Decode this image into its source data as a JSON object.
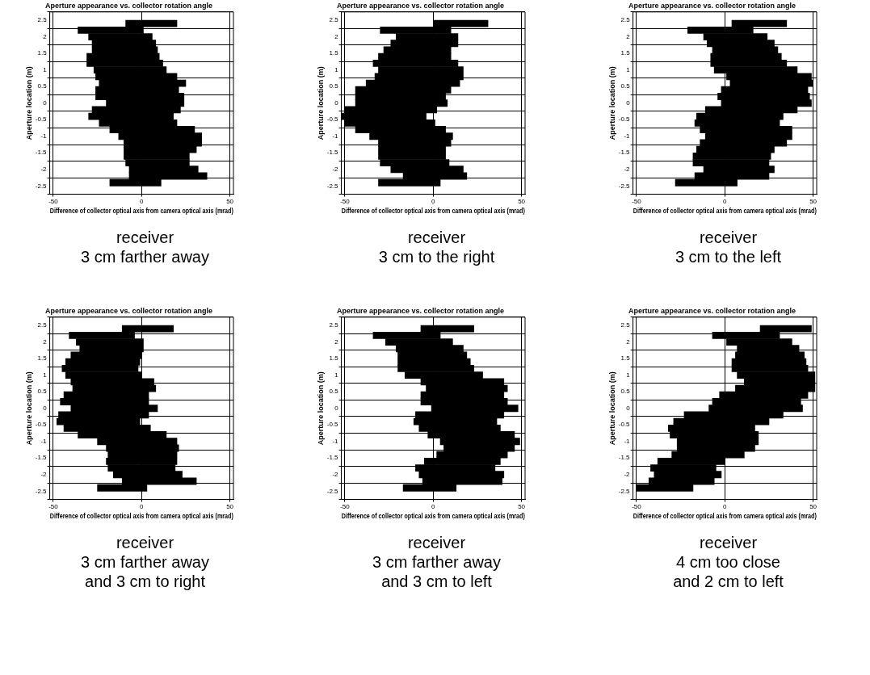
{
  "chart_data": [
    {
      "type": "bar",
      "orientation": "horizontal",
      "title": "Aperture appearance vs. collector rotation angle",
      "xlabel": "Difference of collector optical axis from camera optical axis (mrad)",
      "ylabel": "Aperture location (m)",
      "color": "#000000",
      "grid": true,
      "xlim": [
        -52,
        52
      ],
      "xticks": [
        -50,
        0,
        50
      ],
      "ylim": [
        -2.5,
        2.5
      ],
      "yticks": [
        -2.5,
        -2,
        -1.5,
        -1,
        -0.5,
        0,
        0.5,
        1,
        1.5,
        2,
        2.5
      ],
      "x": [
        2.4,
        2.2,
        2.0,
        1.8,
        1.6,
        1.4,
        1.2,
        1.0,
        0.8,
        0.6,
        0.4,
        0.2,
        0,
        -0.2,
        -0.4,
        -0.6,
        -0.8,
        -1.0,
        -1.2,
        -1.4,
        -1.6,
        -1.8,
        -2.0,
        -2.2,
        -2.4
      ],
      "base": [
        -9,
        -36,
        -30,
        -28,
        -28,
        -31,
        -31,
        -27,
        -26,
        -24,
        -26,
        -26,
        -20,
        -28,
        -30,
        -24,
        -18,
        -13,
        -10,
        -10,
        -10,
        -9,
        -7,
        -7,
        -18
      ],
      "values": [
        29,
        37,
        36,
        36,
        37,
        41,
        43,
        41,
        46,
        49,
        47,
        50,
        44,
        50,
        48,
        44,
        48,
        47,
        44,
        41,
        37,
        36,
        39,
        44,
        29
      ],
      "annotations": [
        "receiver",
        "3 cm farther away"
      ]
    },
    {
      "type": "bar",
      "orientation": "horizontal",
      "title": "Aperture appearance vs. collector rotation angle",
      "xlabel": "Difference of collector optical axis from camera optical axis (mrad)",
      "ylabel": "Aperture location (m)",
      "color": "#000000",
      "grid": true,
      "xlim": [
        -52,
        52
      ],
      "xticks": [
        -50,
        0,
        50
      ],
      "ylim": [
        -2.5,
        2.5
      ],
      "yticks": [
        -2.5,
        -2,
        -1.5,
        -1,
        -0.5,
        0,
        0.5,
        1,
        1.5,
        2,
        2.5
      ],
      "x": [
        2.4,
        2.2,
        2.0,
        1.8,
        1.6,
        1.4,
        1.2,
        1.0,
        0.8,
        0.6,
        0.4,
        0.2,
        0,
        -0.2,
        -0.4,
        -0.6,
        -0.8,
        -1.0,
        -1.2,
        -1.4,
        -1.6,
        -1.8,
        -2.0,
        -2.2,
        -2.4
      ],
      "base": [
        0,
        -30,
        -21,
        -24,
        -28,
        -31,
        -34,
        -31,
        -33,
        -38,
        -44,
        -44,
        -44,
        -50,
        -52,
        -50,
        -44,
        -36,
        -31,
        -31,
        -31,
        -30,
        -24,
        -17,
        -31
      ],
      "values": [
        31,
        40,
        35,
        38,
        38,
        41,
        48,
        48,
        50,
        53,
        54,
        51,
        52,
        52,
        48,
        51,
        51,
        47,
        41,
        38,
        38,
        39,
        41,
        36,
        35
      ],
      "annotations": [
        "receiver",
        "3 cm to the right"
      ]
    },
    {
      "type": "bar",
      "orientation": "horizontal",
      "title": "Aperture appearance vs. collector rotation angle",
      "xlabel": "Difference of collector optical axis from camera optical axis (mrad)",
      "ylabel": "Aperture location (m)",
      "color": "#000000",
      "grid": true,
      "xlim": [
        -52,
        52
      ],
      "xticks": [
        -50,
        0,
        50
      ],
      "ylim": [
        -2.5,
        2.5
      ],
      "yticks": [
        -2.5,
        -2,
        -1.5,
        -1,
        -0.5,
        0,
        0.5,
        1,
        1.5,
        2,
        2.5
      ],
      "x": [
        2.4,
        2.2,
        2.0,
        1.8,
        1.6,
        1.4,
        1.2,
        1.0,
        0.8,
        0.6,
        0.4,
        0.2,
        0,
        -0.2,
        -0.4,
        -0.6,
        -0.8,
        -1.0,
        -1.2,
        -1.4,
        -1.6,
        -1.8,
        -2.0,
        -2.2,
        -2.4
      ],
      "base": [
        4,
        -21,
        -12,
        -10,
        -7,
        -8,
        -8,
        -6,
        1,
        3,
        -2,
        -4,
        -2,
        -11,
        -16,
        -17,
        -14,
        -11,
        -14,
        -16,
        -18,
        -18,
        -12,
        -17,
        -28
      ],
      "values": [
        31,
        37,
        36,
        38,
        37,
        40,
        43,
        47,
        48,
        47,
        49,
        52,
        51,
        52,
        49,
        48,
        52,
        49,
        49,
        44,
        44,
        43,
        40,
        42,
        35
      ],
      "annotations": [
        "receiver",
        "3 cm to the left"
      ]
    },
    {
      "type": "bar",
      "orientation": "horizontal",
      "title": "Aperture appearance vs. collector rotation angle",
      "xlabel": "Difference of collector optical axis from camera optical axis (mrad)",
      "ylabel": "Aperture location (m)",
      "color": "#000000",
      "grid": true,
      "xlim": [
        -52,
        52
      ],
      "xticks": [
        -50,
        0,
        50
      ],
      "ylim": [
        -2.5,
        2.5
      ],
      "yticks": [
        -2.5,
        -2,
        -1.5,
        -1,
        -0.5,
        0,
        0.5,
        1,
        1.5,
        2,
        2.5
      ],
      "x": [
        2.4,
        2.2,
        2.0,
        1.8,
        1.6,
        1.4,
        1.2,
        1.0,
        0.8,
        0.6,
        0.4,
        0.2,
        0,
        -0.2,
        -0.4,
        -0.6,
        -0.8,
        -1.0,
        -1.2,
        -1.4,
        -1.6,
        -1.8,
        -2.0,
        -2.2,
        -2.4
      ],
      "base": [
        -11,
        -41,
        -37,
        -35,
        -40,
        -43,
        -45,
        -43,
        -40,
        -39,
        -44,
        -46,
        -40,
        -47,
        -48,
        -44,
        -36,
        -25,
        -20,
        -19,
        -20,
        -19,
        -16,
        -11,
        -25
      ],
      "values": [
        29,
        37,
        38,
        36,
        40,
        42,
        43,
        43,
        47,
        47,
        48,
        50,
        49,
        51,
        47,
        49,
        50,
        45,
        41,
        39,
        40,
        38,
        39,
        42,
        28
      ],
      "annotations": [
        "receiver",
        "3 cm farther away",
        "and 3 cm to right"
      ]
    },
    {
      "type": "bar",
      "orientation": "horizontal",
      "title": "Aperture appearance vs. collector rotation angle",
      "xlabel": "Difference of collector optical axis from camera optical axis (mrad)",
      "ylabel": "Aperture location (m)",
      "color": "#000000",
      "grid": true,
      "xlim": [
        -52,
        52
      ],
      "xticks": [
        -50,
        0,
        50
      ],
      "ylim": [
        -2.5,
        2.5
      ],
      "yticks": [
        -2.5,
        -2,
        -1.5,
        -1,
        -0.5,
        0,
        0.5,
        1,
        1.5,
        2,
        2.5
      ],
      "x": [
        2.4,
        2.2,
        2.0,
        1.8,
        1.6,
        1.4,
        1.2,
        1.0,
        0.8,
        0.6,
        0.4,
        0.2,
        0,
        -0.2,
        -0.4,
        -0.6,
        -0.8,
        -1.0,
        -1.2,
        -1.4,
        -1.6,
        -1.8,
        -2.0,
        -2.2,
        -2.4
      ],
      "base": [
        -7,
        -34,
        -27,
        -21,
        -20,
        -20,
        -20,
        -16,
        -7,
        -4,
        -7,
        -7,
        -1,
        -10,
        -11,
        -8,
        -3,
        4,
        6,
        2,
        -5,
        -10,
        -8,
        -6,
        -17
      ],
      "values": [
        30,
        38,
        38,
        38,
        39,
        41,
        43,
        44,
        47,
        46,
        47,
        49,
        49,
        50,
        47,
        46,
        49,
        45,
        40,
        40,
        43,
        45,
        48,
        45,
        30
      ],
      "annotations": [
        "receiver",
        "3 cm farther away",
        "and 3 cm to left"
      ]
    },
    {
      "type": "bar",
      "orientation": "horizontal",
      "title": "Aperture appearance vs. collector rotation angle",
      "xlabel": "Difference of collector optical axis from camera optical axis (mrad)",
      "ylabel": "Aperture location (m)",
      "color": "#000000",
      "grid": true,
      "xlim": [
        -52,
        52
      ],
      "xticks": [
        -50,
        0,
        50
      ],
      "ylim": [
        -2.5,
        2.5
      ],
      "yticks": [
        -2.5,
        -2,
        -1.5,
        -1,
        -0.5,
        0,
        0.5,
        1,
        1.5,
        2,
        2.5
      ],
      "x": [
        2.4,
        2.2,
        2.0,
        1.8,
        1.6,
        1.4,
        1.2,
        1.0,
        0.8,
        0.6,
        0.4,
        0.2,
        0,
        -0.2,
        -0.4,
        -0.6,
        -0.8,
        -1.0,
        -1.2,
        -1.4,
        -1.6,
        -1.8,
        -2.0,
        -2.2,
        -2.4
      ],
      "base": [
        20,
        -7,
        1,
        7,
        6,
        4,
        4,
        7,
        11,
        6,
        -3,
        -7,
        -9,
        -23,
        -29,
        -32,
        -31,
        -27,
        -27,
        -30,
        -38,
        -42,
        -40,
        -43,
        -50
      ],
      "values": [
        29,
        38,
        37,
        35,
        39,
        42,
        43,
        44,
        40,
        45,
        50,
        50,
        53,
        56,
        54,
        49,
        50,
        46,
        44,
        41,
        38,
        37,
        38,
        37,
        32
      ],
      "annotations": [
        "receiver",
        "4 cm too close",
        "and 2 cm to left"
      ]
    }
  ]
}
